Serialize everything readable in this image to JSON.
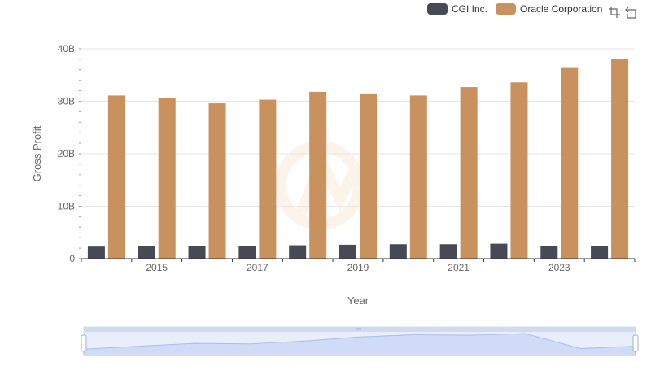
{
  "chart_data": {
    "type": "bar",
    "x": [
      2014,
      2015,
      2016,
      2017,
      2018,
      2019,
      2020,
      2021,
      2022,
      2023,
      2024
    ],
    "x_ticks": [
      "2015",
      "2017",
      "2019",
      "2021",
      "2023"
    ],
    "series": [
      {
        "name": "CGI Inc.",
        "color": "#474955",
        "values": [
          2.3,
          2.35,
          2.45,
          2.4,
          2.55,
          2.65,
          2.75,
          2.75,
          2.85,
          2.35,
          2.45
        ]
      },
      {
        "name": "Oracle Corporation",
        "color": "#c8915e",
        "values": [
          31.1,
          30.7,
          29.6,
          30.3,
          31.8,
          31.5,
          31.1,
          32.7,
          33.6,
          36.5,
          38.0
        ]
      }
    ],
    "xlabel": "Year",
    "ylabel": "Gross Profit",
    "ylim": [
      0,
      40
    ],
    "y_ticks": [
      "0",
      "10B",
      "20B",
      "30B",
      "40B"
    ],
    "grid": true,
    "legend_position": "top-right",
    "brush_line_values": [
      1.1,
      1.6,
      2.1,
      2.0,
      2.5,
      3.2,
      3.6,
      3.5,
      3.8,
      1.2,
      1.6
    ]
  },
  "toolbar": {
    "icons": [
      "zoom-icon",
      "restore-icon"
    ]
  }
}
